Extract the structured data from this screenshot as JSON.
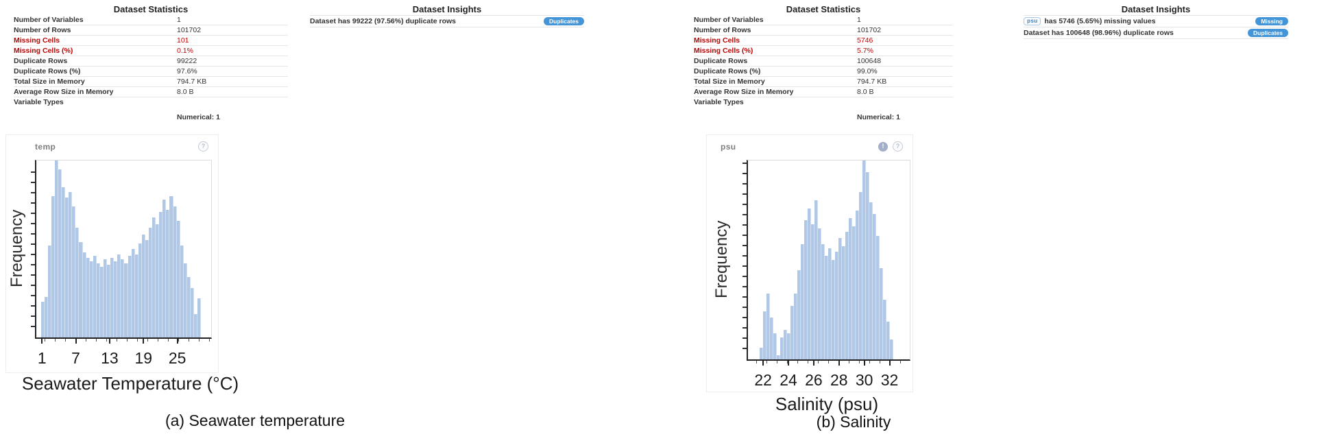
{
  "colors": {
    "badge_blue": "#4495d8",
    "alert_red": "#c00000",
    "bar_fill": "#b0c7e6",
    "chip_border": "#a5c7e8",
    "chip_text": "#4180c0"
  },
  "panels": [
    {
      "id": "a",
      "caption": "(a) Seawater temperature",
      "stats": {
        "title": "Dataset Statistics",
        "rows": [
          {
            "label": "Number of Variables",
            "value": "1",
            "alert": false
          },
          {
            "label": "Number of Rows",
            "value": "101702",
            "alert": false
          },
          {
            "label": "Missing Cells",
            "value": "101",
            "alert": true
          },
          {
            "label": "Missing Cells (%)",
            "value": "0.1%",
            "alert": true
          },
          {
            "label": "Duplicate Rows",
            "value": "99222",
            "alert": false
          },
          {
            "label": "Duplicate Rows (%)",
            "value": "97.6%",
            "alert": false
          },
          {
            "label": "Total Size in Memory",
            "value": "794.7 KB",
            "alert": false
          },
          {
            "label": "Average Row Size in Memory",
            "value": "8.0 B",
            "alert": false
          },
          {
            "label": "Variable Types",
            "value": "",
            "alert": false
          }
        ],
        "variable_types_value": "Numerical: 1"
      },
      "insights": {
        "title": "Dataset Insights",
        "items": [
          {
            "chip": "",
            "text": "Dataset has 99222 (97.56%) duplicate rows",
            "badge": "Duplicates"
          }
        ]
      },
      "histogram": {
        "variable": "temp",
        "icons": [
          {
            "name": "help-icon",
            "glyph": "?"
          }
        ],
        "ylabel": "Frequency",
        "xlabel": "Seawater Temperature (°C)"
      }
    },
    {
      "id": "b",
      "caption": "(b) Salinity",
      "stats": {
        "title": "Dataset Statistics",
        "rows": [
          {
            "label": "Number of Variables",
            "value": "1",
            "alert": false
          },
          {
            "label": "Number of Rows",
            "value": "101702",
            "alert": false
          },
          {
            "label": "Missing Cells",
            "value": "5746",
            "alert": true
          },
          {
            "label": "Missing Cells (%)",
            "value": "5.7%",
            "alert": true
          },
          {
            "label": "Duplicate Rows",
            "value": "100648",
            "alert": false
          },
          {
            "label": "Duplicate Rows (%)",
            "value": "99.0%",
            "alert": false
          },
          {
            "label": "Total Size in Memory",
            "value": "794.7 KB",
            "alert": false
          },
          {
            "label": "Average Row Size in Memory",
            "value": "8.0 B",
            "alert": false
          },
          {
            "label": "Variable Types",
            "value": "",
            "alert": false
          }
        ],
        "variable_types_value": "Numerical: 1"
      },
      "insights": {
        "title": "Dataset Insights",
        "items": [
          {
            "chip": "psu",
            "text": "has 5746 (5.65%) missing values",
            "badge": "Missing"
          },
          {
            "chip": "",
            "text": "Dataset has 100648 (98.96%) duplicate rows",
            "badge": "Duplicates"
          }
        ]
      },
      "histogram": {
        "variable": "psu",
        "icons": [
          {
            "name": "alert-icon",
            "glyph": "!"
          },
          {
            "name": "help-icon",
            "glyph": "?"
          }
        ],
        "ylabel": "Frequency",
        "xlabel": "Salinity (psu)"
      }
    }
  ],
  "chart_data": [
    {
      "type": "bar",
      "subtype": "histogram",
      "title": "temp",
      "xlabel": "Seawater Temperature (°C)",
      "ylabel": "Frequency",
      "xticks": [
        1,
        7,
        13,
        19,
        25
      ],
      "xlim": [
        0,
        31
      ],
      "grid": false,
      "legend": false,
      "bar_span_x": [
        0.8,
        29.2
      ],
      "bar_heights_relative": [
        0.2,
        0.23,
        0.52,
        0.8,
        1.0,
        0.95,
        0.85,
        0.79,
        0.82,
        0.74,
        0.62,
        0.54,
        0.48,
        0.45,
        0.43,
        0.46,
        0.42,
        0.4,
        0.44,
        0.41,
        0.45,
        0.43,
        0.47,
        0.44,
        0.42,
        0.46,
        0.5,
        0.47,
        0.53,
        0.58,
        0.55,
        0.62,
        0.68,
        0.64,
        0.71,
        0.78,
        0.72,
        0.8,
        0.74,
        0.66,
        0.52,
        0.42,
        0.34,
        0.28,
        0.13,
        0.22
      ]
    },
    {
      "type": "bar",
      "subtype": "histogram",
      "title": "psu",
      "xlabel": "Salinity (psu)",
      "ylabel": "Frequency",
      "xticks": [
        22,
        24,
        26,
        28,
        30,
        32
      ],
      "xlim": [
        20.8,
        33.6
      ],
      "grid": false,
      "legend": false,
      "bar_span_x": [
        21.7,
        32.3
      ],
      "bar_heights_relative": [
        0.06,
        0.24,
        0.33,
        0.21,
        0.13,
        0.02,
        0.11,
        0.15,
        0.13,
        0.27,
        0.33,
        0.45,
        0.58,
        0.7,
        0.76,
        0.68,
        0.8,
        0.66,
        0.58,
        0.52,
        0.56,
        0.5,
        0.54,
        0.61,
        0.57,
        0.64,
        0.71,
        0.67,
        0.75,
        0.84,
        1.0,
        0.94,
        0.79,
        0.73,
        0.62,
        0.46,
        0.3,
        0.19,
        0.1
      ]
    }
  ]
}
